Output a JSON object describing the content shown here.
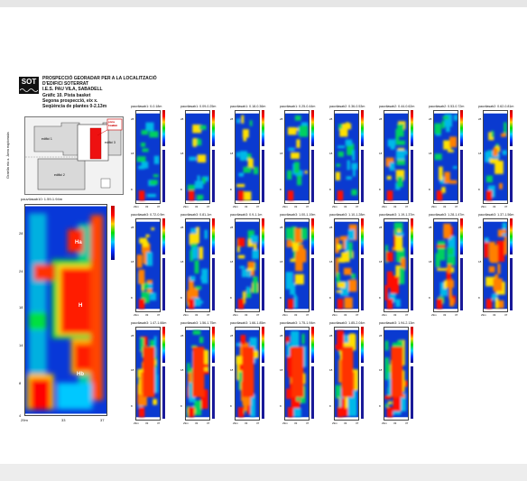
{
  "header": {
    "logo_text": "SOT",
    "lines": [
      "PROSPECCIÓ GEORADAR PER A LA LOCALITZACIÓ",
      "D'EDIFICI SOTERRAT",
      "I.E.S. PAU VILA, SABADELL",
      "Gràfic 10. Pista basket",
      "Segona prospecció, eix x.",
      "Seqüència de plantes 0-2.13m"
    ]
  },
  "site_plan": {
    "axis_label": "Graella eix x. Àrea explorada",
    "building_1": "edifici 1",
    "building_2": "edifici 2",
    "building_3": "edifici 3",
    "zone_label": "pista basket",
    "zone_sub": "eix x"
  },
  "big_panel": {
    "caption": "pauvilasab10: 1.59-1.94m",
    "y_ticks": [
      "28",
      "24",
      "18",
      "14",
      "8",
      "4"
    ],
    "x_ticks": [
      "29m",
      "33",
      "37"
    ],
    "anomalies": [
      "Ha",
      "H",
      "Hb"
    ]
  },
  "panels": [
    {
      "caption": "pauvilasab1: 0-0.18m"
    },
    {
      "caption": "pauvilasab1: 0.09-0.25m"
    },
    {
      "caption": "pauvilasab1: 0.18-0.36m"
    },
    {
      "caption": "pauvilasab1: 0.25-0.44m"
    },
    {
      "caption": "pauvilasab2: 0.36-0.53m"
    },
    {
      "caption": "pauvilasab2: 0.44-0.62m"
    },
    {
      "caption": "pauvilasab2: 0.53-0.72m"
    },
    {
      "caption": "pauvilasab2: 0.62-0.81m"
    },
    {
      "caption": "pauvilasab3: 0.72-0.9m"
    },
    {
      "caption": "pauvilasab3: 0.81-1m"
    },
    {
      "caption": "pauvilasab3: 0.9-1.1m"
    },
    {
      "caption": "pauvilasab3: 1.00-1.19m"
    },
    {
      "caption": "pauvilasab3: 1.10-1.28m"
    },
    {
      "caption": "pauvilasab3: 1.19-1.37m"
    },
    {
      "caption": "pauvilasab3: 1.28-1.47m"
    },
    {
      "caption": "pauvilasab3: 1.37-1.56m"
    },
    {
      "caption": "pauvilasab3: 1.47-1.66m"
    },
    {
      "caption": "pauvilasab3: 1.56-1.75m"
    },
    {
      "caption": "pauvilasab3: 1.66-1.85m"
    },
    {
      "caption": "pauvilasab3: 1.75-1.94m"
    },
    {
      "caption": "pauvilasab3: 1.85-2.04m"
    },
    {
      "caption": "pauvilasab3: 1.94-2.13m"
    }
  ],
  "panel_axes": {
    "y_ticks": [
      "28",
      "18",
      "8"
    ],
    "x_ticks": [
      "29m",
      "33",
      "37"
    ]
  }
}
